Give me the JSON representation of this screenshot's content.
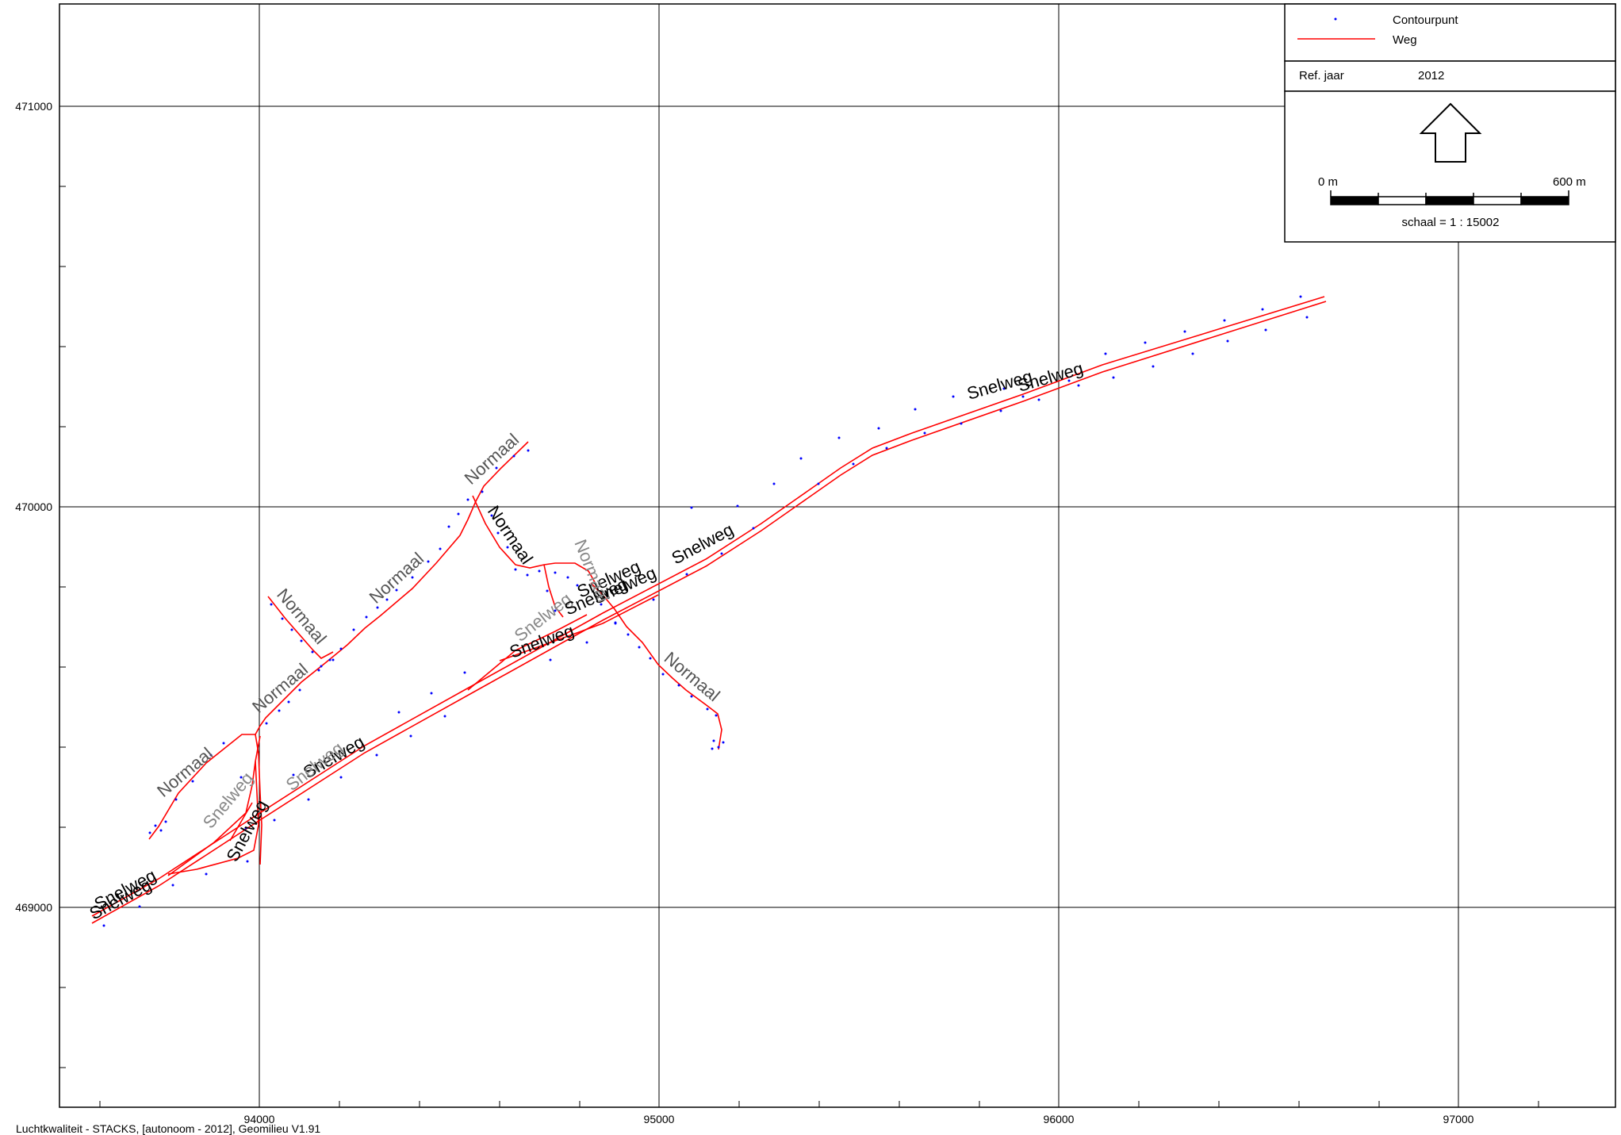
{
  "map": {
    "x_ticks": [
      "94000",
      "95000",
      "96000",
      "97000"
    ],
    "y_ticks": [
      "471000",
      "470000",
      "469000"
    ],
    "x_range": [
      93550,
      97400
    ],
    "y_range": [
      468400,
      471250
    ],
    "road_color": "#ff0000",
    "point_color": "#0000ff",
    "road_labels": [
      "Snelweg",
      "Normaal"
    ]
  },
  "legend": {
    "items": [
      {
        "label": "Contourpunt",
        "symbol": "dot"
      },
      {
        "label": "Weg",
        "symbol": "line"
      }
    ],
    "ref_label": "Ref. jaar",
    "ref_value": "2012",
    "north_arrow": "north-arrow-icon",
    "scale_start": "0 m",
    "scale_end": "600 m",
    "scale_text": "schaal = 1 : 15002"
  },
  "footer": {
    "text": "Luchtkwaliteit - STACKS, [autonoom - 2012], Geomilieu V1.91"
  }
}
